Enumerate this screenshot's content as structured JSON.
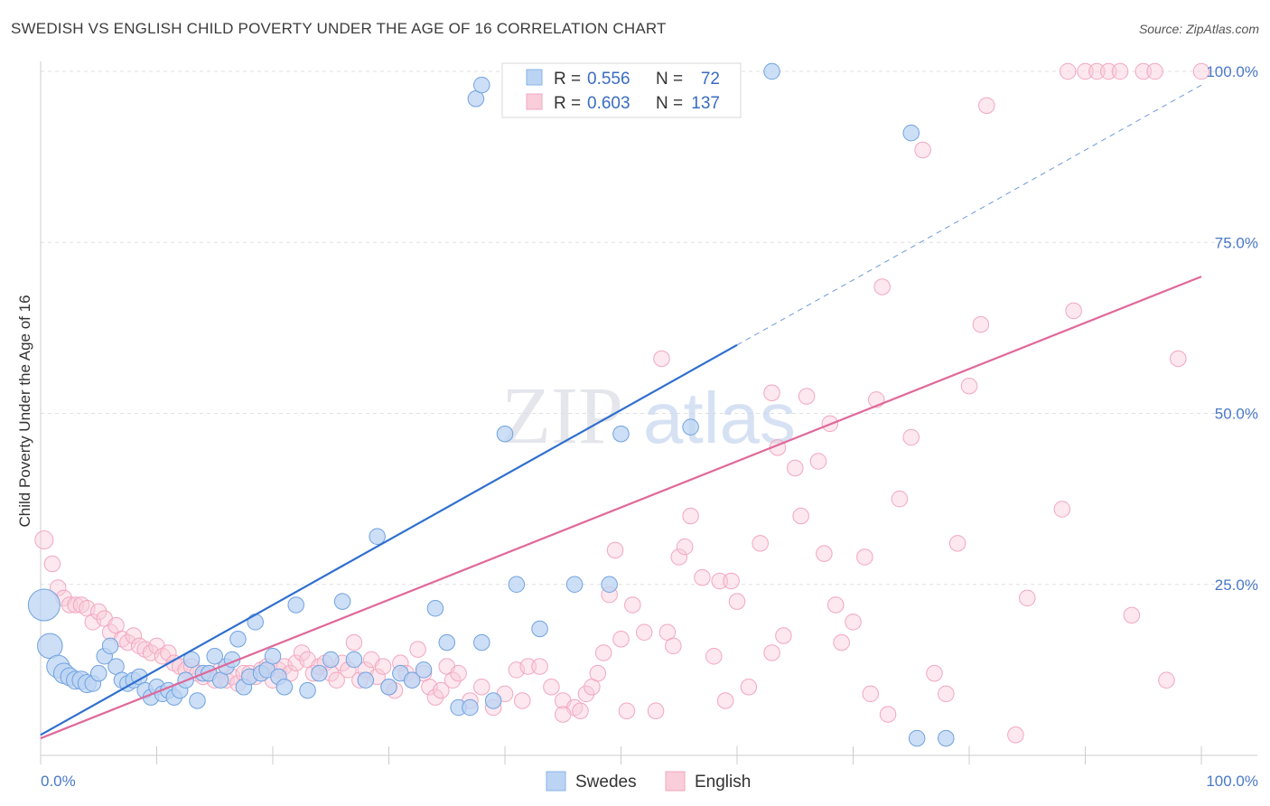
{
  "header": {
    "title": "SWEDISH VS ENGLISH CHILD POVERTY UNDER THE AGE OF 16 CORRELATION CHART",
    "source": "Source: ZipAtlas.com"
  },
  "watermark": {
    "zip": "ZIP",
    "atlas": "atlas"
  },
  "legend": {
    "r_label": "R =",
    "n_label": "N =",
    "entries": [
      {
        "name": "Swedes",
        "r": "0.556",
        "n": "72",
        "color": "#8ab4e8"
      },
      {
        "name": "English",
        "r": "0.603",
        "n": "137",
        "color": "#f2a7bf"
      }
    ]
  },
  "chart_data": {
    "type": "scatter",
    "title": "SWEDISH VS ENGLISH CHILD POVERTY UNDER THE AGE OF 16 CORRELATION CHART",
    "ylabel": "Child Poverty Under the Age of 16",
    "xlabel": "",
    "xlim": [
      0,
      100
    ],
    "ylim": [
      0,
      100
    ],
    "x_tick_labels": [
      "0.0%",
      "100.0%"
    ],
    "y_ticks": [
      25,
      50,
      75,
      100
    ],
    "y_tick_labels": [
      "25.0%",
      "50.0%",
      "75.0%",
      "100.0%"
    ],
    "grid": "horizontal dashed",
    "legend_placement": "top-center",
    "series": [
      {
        "name": "Swedes",
        "color": "#6fa2e0",
        "line_color": "#2f6fcf",
        "trend": {
          "x0": 0,
          "y0": 3,
          "x1": 60,
          "y1": 60,
          "dash_to": [
            100,
            98
          ]
        },
        "points": [
          [
            0.3,
            22,
            14
          ],
          [
            0.8,
            16,
            11
          ],
          [
            1.5,
            13,
            10
          ],
          [
            2,
            12,
            9
          ],
          [
            2.5,
            11.5,
            8
          ],
          [
            3,
            11,
            8
          ],
          [
            3.5,
            11,
            8
          ],
          [
            4,
            10.5,
            8
          ],
          [
            4.5,
            10.5,
            7
          ],
          [
            5,
            12,
            7
          ],
          [
            5.5,
            14.5,
            7
          ],
          [
            6,
            16,
            7
          ],
          [
            6.5,
            13,
            7
          ],
          [
            7,
            11,
            7
          ],
          [
            7.5,
            10.5,
            7
          ],
          [
            8,
            11,
            7
          ],
          [
            8.5,
            11.5,
            7
          ],
          [
            9,
            9.5,
            7
          ],
          [
            9.5,
            8.5,
            7
          ],
          [
            10,
            10,
            7
          ],
          [
            10.5,
            9,
            7
          ],
          [
            11,
            9.5,
            7
          ],
          [
            11.5,
            8.5,
            7
          ],
          [
            12,
            9.5,
            7
          ],
          [
            12.5,
            11,
            7
          ],
          [
            13,
            14,
            7
          ],
          [
            13.5,
            8,
            7
          ],
          [
            14,
            12,
            7
          ],
          [
            14.5,
            12,
            7
          ],
          [
            15,
            14.5,
            7
          ],
          [
            15.5,
            11,
            7
          ],
          [
            16,
            13,
            7
          ],
          [
            16.5,
            14,
            7
          ],
          [
            17,
            17,
            7
          ],
          [
            17.5,
            10,
            7
          ],
          [
            18,
            11.5,
            7
          ],
          [
            18.5,
            19.5,
            7
          ],
          [
            19,
            12,
            7
          ],
          [
            19.5,
            12.5,
            7
          ],
          [
            20,
            14.5,
            7
          ],
          [
            20.5,
            11.5,
            7
          ],
          [
            21,
            10,
            7
          ],
          [
            22,
            22,
            7
          ],
          [
            23,
            9.5,
            7
          ],
          [
            24,
            12,
            7
          ],
          [
            25,
            14,
            7
          ],
          [
            26,
            22.5,
            7
          ],
          [
            27,
            14,
            7
          ],
          [
            28,
            11,
            7
          ],
          [
            29,
            32,
            7
          ],
          [
            30,
            10,
            7
          ],
          [
            31,
            12,
            7
          ],
          [
            32,
            11,
            7
          ],
          [
            33,
            12.5,
            7
          ],
          [
            34,
            21.5,
            7
          ],
          [
            35,
            16.5,
            7
          ],
          [
            36,
            7,
            7
          ],
          [
            37,
            7,
            7
          ],
          [
            38,
            16.5,
            7
          ],
          [
            39,
            8,
            7
          ],
          [
            40,
            47,
            7
          ],
          [
            41,
            25,
            7
          ],
          [
            43,
            18.5,
            7
          ],
          [
            46,
            25,
            7
          ],
          [
            49,
            25,
            7
          ],
          [
            50,
            47,
            7
          ],
          [
            56,
            48,
            7
          ],
          [
            37.5,
            96,
            7
          ],
          [
            38,
            98,
            7
          ],
          [
            63,
            100,
            7
          ],
          [
            75,
            91,
            7
          ],
          [
            75.5,
            2.5,
            7
          ],
          [
            78,
            2.5,
            7
          ]
        ]
      },
      {
        "name": "English",
        "color": "#f2a7bf",
        "line_color": "#e0689a",
        "trend": {
          "x0": 0,
          "y0": 2.5,
          "x1": 100,
          "y1": 70
        },
        "points": [
          [
            0.3,
            31.5,
            8
          ],
          [
            1,
            28,
            7
          ],
          [
            1.5,
            24.5,
            7
          ],
          [
            2,
            23,
            7
          ],
          [
            2.5,
            22,
            7
          ],
          [
            3,
            22,
            7
          ],
          [
            3.5,
            22,
            7
          ],
          [
            4,
            21.5,
            7
          ],
          [
            4.5,
            19.5,
            7
          ],
          [
            5,
            21,
            7
          ],
          [
            5.5,
            20,
            7
          ],
          [
            6,
            18,
            7
          ],
          [
            6.5,
            19,
            7
          ],
          [
            7,
            17,
            7
          ],
          [
            7.5,
            16.5,
            7
          ],
          [
            8,
            17.5,
            7
          ],
          [
            8.5,
            16,
            7
          ],
          [
            9,
            15.5,
            7
          ],
          [
            9.5,
            15,
            7
          ],
          [
            10,
            16,
            7
          ],
          [
            10.5,
            14.5,
            7
          ],
          [
            11,
            15,
            7
          ],
          [
            11.5,
            13.5,
            7
          ],
          [
            12,
            13,
            7
          ],
          [
            12.5,
            12.5,
            7
          ],
          [
            13,
            13,
            7
          ],
          [
            13.5,
            12,
            7
          ],
          [
            14,
            11.5,
            7
          ],
          [
            14.5,
            12,
            7
          ],
          [
            15,
            11,
            7
          ],
          [
            15.5,
            12.5,
            7
          ],
          [
            16,
            11,
            7
          ],
          [
            16.5,
            11.5,
            7
          ],
          [
            17,
            10.5,
            7
          ],
          [
            17.5,
            12,
            7
          ],
          [
            18,
            12,
            7
          ],
          [
            18.5,
            11.5,
            7
          ],
          [
            19,
            12.5,
            7
          ],
          [
            19.5,
            13,
            7
          ],
          [
            20,
            11,
            7
          ],
          [
            20.5,
            12.5,
            7
          ],
          [
            21,
            13,
            7
          ],
          [
            21.5,
            12,
            7
          ],
          [
            22,
            13.5,
            7
          ],
          [
            22.5,
            15,
            7
          ],
          [
            23,
            14,
            7
          ],
          [
            23.5,
            12,
            7
          ],
          [
            24,
            13,
            7
          ],
          [
            24.5,
            13.5,
            7
          ],
          [
            25,
            12,
            7
          ],
          [
            25.5,
            11,
            7
          ],
          [
            26,
            13.5,
            7
          ],
          [
            26.5,
            12.5,
            7
          ],
          [
            27,
            16.5,
            7
          ],
          [
            27.5,
            11,
            7
          ],
          [
            28,
            12.5,
            7
          ],
          [
            28.5,
            14,
            7
          ],
          [
            29,
            11.5,
            7
          ],
          [
            29.5,
            13,
            7
          ],
          [
            30,
            10,
            7
          ],
          [
            30.5,
            9.5,
            7
          ],
          [
            31,
            13.5,
            7
          ],
          [
            31.5,
            12,
            7
          ],
          [
            32,
            11,
            7
          ],
          [
            32.5,
            15.5,
            7
          ],
          [
            33,
            12,
            7
          ],
          [
            33.5,
            10,
            7
          ],
          [
            34,
            8.5,
            7
          ],
          [
            34.5,
            9.5,
            7
          ],
          [
            35,
            13,
            7
          ],
          [
            35.5,
            11,
            7
          ],
          [
            36,
            12,
            7
          ],
          [
            37,
            8,
            7
          ],
          [
            38,
            10,
            7
          ],
          [
            39,
            7,
            7
          ],
          [
            40,
            9,
            7
          ],
          [
            41,
            12.5,
            7
          ],
          [
            41.5,
            8,
            7
          ],
          [
            42,
            13,
            7
          ],
          [
            43,
            13,
            7
          ],
          [
            44,
            10,
            7
          ],
          [
            45,
            8,
            7
          ],
          [
            46,
            7,
            7
          ],
          [
            46.5,
            6.5,
            7
          ],
          [
            47,
            9,
            7
          ],
          [
            47.5,
            10,
            7
          ],
          [
            48,
            12,
            7
          ],
          [
            48.5,
            15,
            7
          ],
          [
            49,
            23.5,
            7
          ],
          [
            49.5,
            30,
            7
          ],
          [
            50,
            17,
            7
          ],
          [
            50.5,
            6.5,
            7
          ],
          [
            51,
            22,
            7
          ],
          [
            52,
            18,
            7
          ],
          [
            53,
            6.5,
            7
          ],
          [
            54,
            18,
            7
          ],
          [
            54.5,
            16,
            7
          ],
          [
            55,
            29,
            7
          ],
          [
            55.5,
            30.5,
            7
          ],
          [
            56,
            35,
            7
          ],
          [
            57,
            26,
            7
          ],
          [
            58,
            14.5,
            7
          ],
          [
            58.5,
            25.5,
            7
          ],
          [
            59,
            8,
            7
          ],
          [
            59.5,
            25.5,
            7
          ],
          [
            60,
            22.5,
            7
          ],
          [
            61,
            10,
            7
          ],
          [
            62,
            31,
            7
          ],
          [
            63,
            15,
            7
          ],
          [
            63.5,
            45,
            7
          ],
          [
            64,
            17.5,
            7
          ],
          [
            65,
            42,
            7
          ],
          [
            65.5,
            35,
            7
          ],
          [
            66,
            52.5,
            7
          ],
          [
            67,
            43,
            7
          ],
          [
            67.5,
            29.5,
            7
          ],
          [
            68,
            48.5,
            7
          ],
          [
            68.5,
            22,
            7
          ],
          [
            69,
            16.5,
            7
          ],
          [
            70,
            19.5,
            7
          ],
          [
            71,
            29,
            7
          ],
          [
            71.5,
            9,
            7
          ],
          [
            72,
            52,
            7
          ],
          [
            73,
            6,
            7
          ],
          [
            74,
            37.5,
            7
          ],
          [
            75,
            46.5,
            7
          ],
          [
            78,
            9,
            7
          ],
          [
            79,
            31,
            7
          ],
          [
            80,
            54,
            7
          ],
          [
            81,
            63,
            7
          ],
          [
            84,
            3,
            7
          ],
          [
            85,
            23,
            7
          ],
          [
            88,
            36,
            7
          ],
          [
            88.5,
            100,
            7
          ],
          [
            89,
            65,
            7
          ],
          [
            90,
            100,
            7
          ],
          [
            91,
            100,
            7
          ],
          [
            92,
            100,
            7
          ],
          [
            93,
            100,
            7
          ],
          [
            94,
            20.5,
            7
          ],
          [
            95,
            100,
            7
          ],
          [
            96,
            100,
            7
          ],
          [
            97,
            11,
            7
          ],
          [
            98,
            58,
            7
          ],
          [
            100,
            100,
            7
          ],
          [
            72.5,
            68.5,
            7
          ],
          [
            76,
            88.5,
            7
          ],
          [
            77,
            12,
            7
          ],
          [
            81.5,
            95,
            7
          ],
          [
            53.5,
            58,
            7
          ],
          [
            63,
            53,
            7
          ],
          [
            45,
            6,
            7
          ]
        ]
      }
    ]
  },
  "bottom_legend": [
    {
      "name": "Swedes",
      "color": "#8ab4e8"
    },
    {
      "name": "English",
      "color": "#f2a7bf"
    }
  ]
}
